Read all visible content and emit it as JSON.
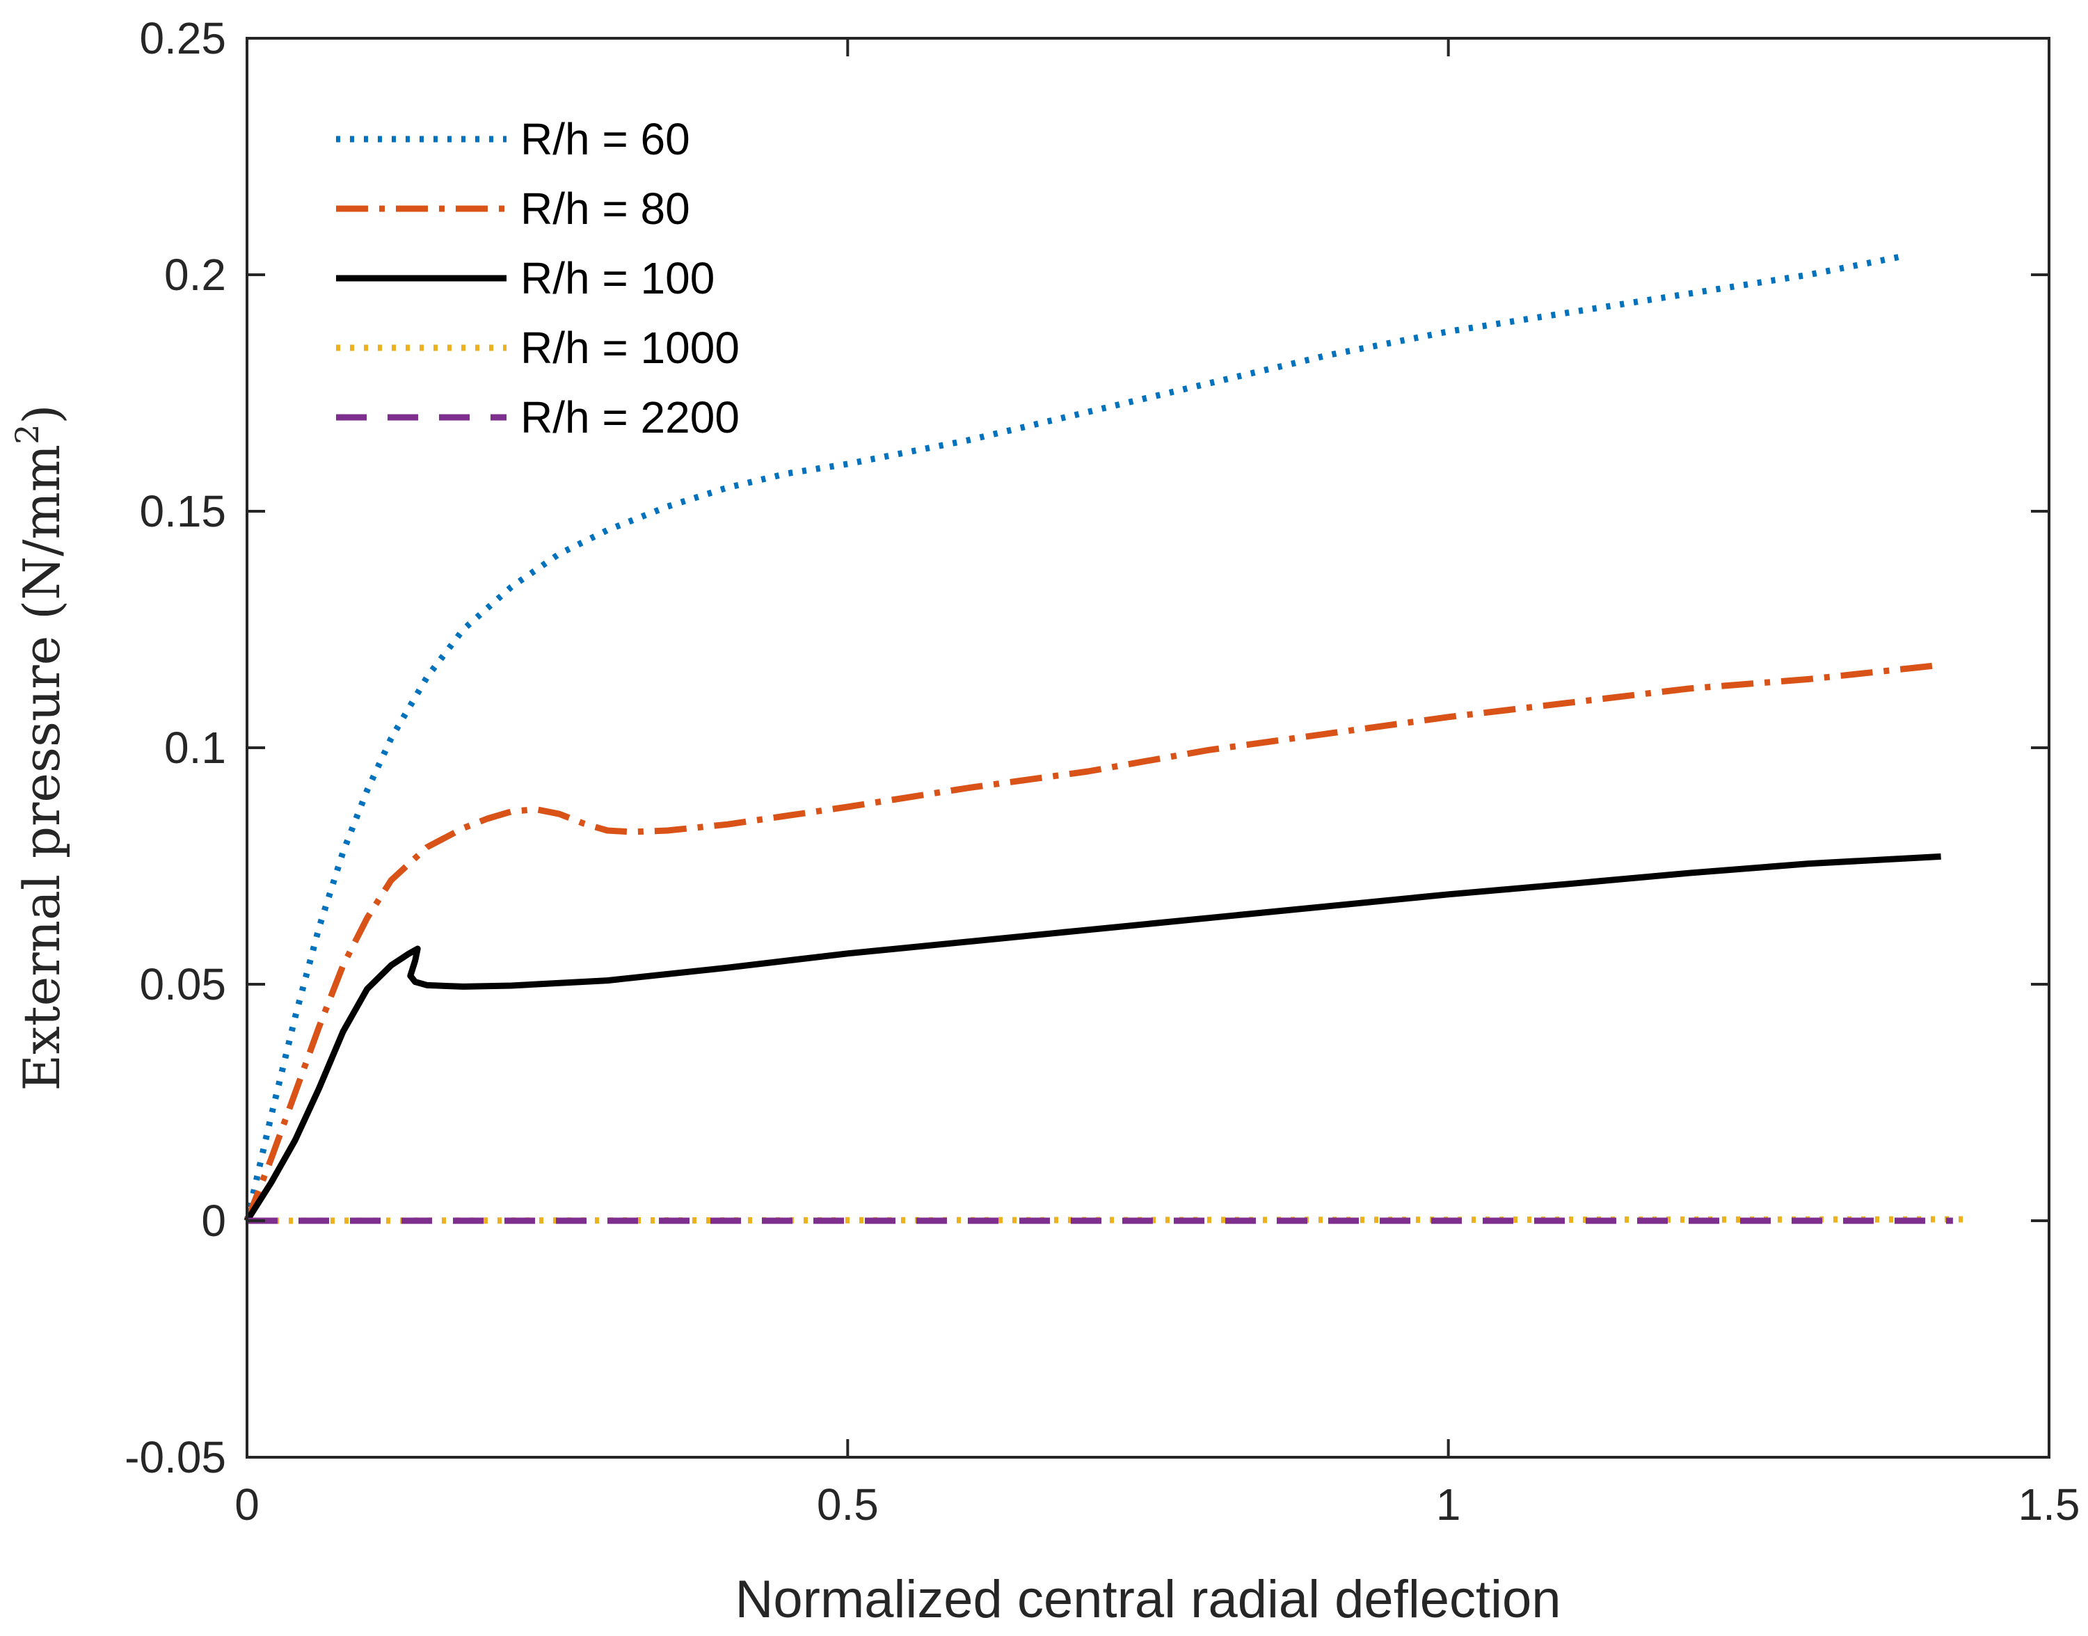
{
  "chart_data": {
    "type": "line",
    "title": "",
    "xlabel": "Normalized central radial deflection",
    "ylabel": "External pressure (N/mm",
    "ylabel_superscript": "2",
    "ylabel_close": ")",
    "xlim": [
      0,
      1.5
    ],
    "ylim": [
      -0.05,
      0.25
    ],
    "xticks": [
      0,
      0.5,
      1,
      1.5
    ],
    "xtick_labels": [
      "0",
      "0.5",
      "1",
      "1.5"
    ],
    "yticks": [
      -0.05,
      0,
      0.05,
      0.1,
      0.15,
      0.2,
      0.25
    ],
    "ytick_labels": [
      "-0.05",
      "0",
      "0.05",
      "0.1",
      "0.15",
      "0.2",
      "0.25"
    ],
    "grid": false,
    "legend_position": "top-left",
    "series": [
      {
        "name": "R/h = 60",
        "color": "#0072BD",
        "style": "dotted",
        "x": [
          0,
          0.02,
          0.04,
          0.06,
          0.08,
          0.1,
          0.12,
          0.15,
          0.18,
          0.22,
          0.26,
          0.3,
          0.35,
          0.4,
          0.45,
          0.5,
          0.6,
          0.7,
          0.8,
          0.9,
          1.0,
          1.1,
          1.2,
          1.3,
          1.38
        ],
        "y": [
          0,
          0.022,
          0.043,
          0.062,
          0.078,
          0.091,
          0.102,
          0.115,
          0.125,
          0.134,
          0.141,
          0.146,
          0.151,
          0.155,
          0.158,
          0.16,
          0.165,
          0.171,
          0.177,
          0.183,
          0.188,
          0.192,
          0.196,
          0.2,
          0.204
        ]
      },
      {
        "name": "R/h = 80",
        "color": "#D95319",
        "style": "dashdot",
        "x": [
          0,
          0.02,
          0.04,
          0.06,
          0.08,
          0.1,
          0.12,
          0.15,
          0.18,
          0.2,
          0.22,
          0.24,
          0.26,
          0.28,
          0.3,
          0.32,
          0.35,
          0.4,
          0.5,
          0.6,
          0.7,
          0.8,
          0.9,
          1.0,
          1.1,
          1.2,
          1.3,
          1.41
        ],
        "y": [
          0,
          0.013,
          0.027,
          0.041,
          0.054,
          0.064,
          0.072,
          0.079,
          0.083,
          0.085,
          0.0865,
          0.087,
          0.086,
          0.084,
          0.0825,
          0.0822,
          0.0825,
          0.0838,
          0.0875,
          0.0915,
          0.095,
          0.0995,
          0.103,
          0.1065,
          0.1095,
          0.1125,
          0.1145,
          0.1175
        ]
      },
      {
        "name": "R/h = 100",
        "color": "#000000",
        "style": "solid",
        "x": [
          0,
          0.02,
          0.04,
          0.06,
          0.08,
          0.1,
          0.12,
          0.135,
          0.142,
          0.14,
          0.136,
          0.14,
          0.15,
          0.18,
          0.22,
          0.3,
          0.4,
          0.5,
          0.6,
          0.7,
          0.8,
          0.9,
          1.0,
          1.1,
          1.2,
          1.3,
          1.41
        ],
        "y": [
          0,
          0.008,
          0.017,
          0.028,
          0.04,
          0.049,
          0.054,
          0.0565,
          0.0575,
          0.055,
          0.0518,
          0.0505,
          0.0498,
          0.0495,
          0.0497,
          0.0508,
          0.0535,
          0.0565,
          0.059,
          0.0615,
          0.064,
          0.0665,
          0.069,
          0.0712,
          0.0735,
          0.0755,
          0.077
        ]
      },
      {
        "name": "R/h = 1000",
        "color": "#EDB120",
        "style": "dotted",
        "x": [
          0,
          1.43
        ],
        "y": [
          0,
          0.0003
        ]
      },
      {
        "name": "R/h = 2200",
        "color": "#7E2F8E",
        "style": "dashed",
        "x": [
          0,
          1.42
        ],
        "y": [
          0,
          0
        ]
      }
    ]
  }
}
